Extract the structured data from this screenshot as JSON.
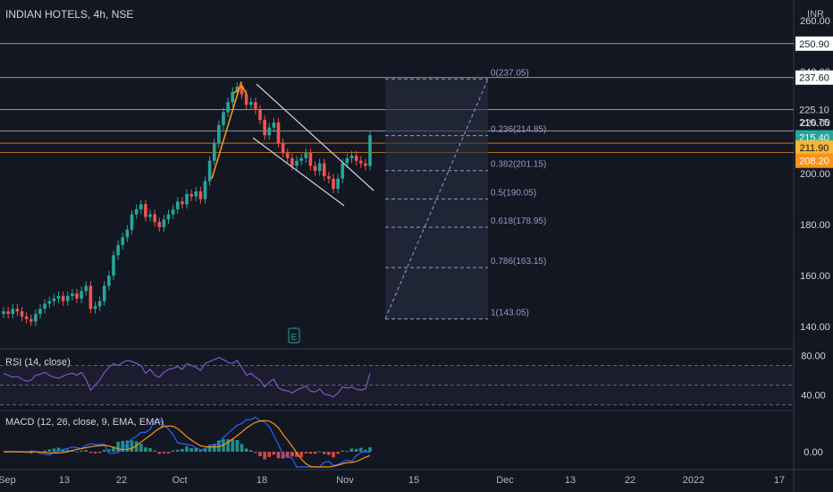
{
  "header": {
    "title": "INDIAN HOTELS, 4h, NSE",
    "currency": "INR"
  },
  "colors": {
    "bg": "#131722",
    "up": "#26a69a",
    "down": "#ef5350",
    "grid": "#2a2e39",
    "fib": "#9598c8",
    "orange": "#f7931a",
    "white": "#d1d4dc",
    "rsi": "#7e57c2",
    "macd": "#2962ff"
  },
  "chart_data": [
    {
      "type": "candlestick",
      "title": "INDIAN HOTELS, 4h, NSE",
      "ylabel": "INR",
      "ylim": [
        132,
        268
      ],
      "yticks": [
        140,
        160,
        180,
        200,
        220,
        240,
        260
      ],
      "ytick_labels": [
        "140.00",
        "160.00",
        "180.00",
        "200.00",
        "220.00",
        "240.00",
        "260.00"
      ],
      "xtick_labels": [
        "Sep",
        "13",
        "22",
        "Oct",
        "18",
        "Nov",
        "15",
        "Dec",
        "13",
        "22",
        "2022",
        "17"
      ],
      "close_series": [
        146,
        145,
        147,
        146,
        144,
        143,
        142,
        145,
        147,
        149,
        150,
        151,
        152,
        150,
        152,
        153,
        151,
        154,
        156,
        147,
        148,
        150,
        156,
        160,
        168,
        172,
        175,
        178,
        184,
        186,
        188,
        183,
        184,
        181,
        179,
        182,
        184,
        186,
        189,
        188,
        192,
        191,
        193,
        190,
        197,
        205,
        212,
        219,
        224,
        228,
        232,
        234,
        231,
        227,
        228,
        225,
        221,
        215,
        218,
        220,
        212,
        208,
        206,
        203,
        205,
        206,
        208,
        203,
        201,
        204,
        199,
        198,
        194,
        198,
        204,
        206,
        207,
        205,
        204,
        203,
        215
      ],
      "horizontal_levels": [
        250.9,
        237.6,
        225.1,
        216.75,
        211.9,
        208.2
      ],
      "price_labels": [
        "250.90",
        "237.60",
        "225.10",
        "216.75",
        "215.40",
        "211.90",
        "208.20"
      ],
      "fibonacci": [
        {
          "label": "0(237.05)",
          "value": 237.05
        },
        {
          "label": "0.236(214.85)",
          "value": 214.85
        },
        {
          "label": "0.382(201.15)",
          "value": 201.15
        },
        {
          "label": "0.5(190.05)",
          "value": 190.05
        },
        {
          "label": "0.618(178.95)",
          "value": 178.95
        },
        {
          "label": "0.786(163.15)",
          "value": 163.15
        },
        {
          "label": "1(143.05)",
          "value": 143.05
        }
      ],
      "last_price": 215.4
    },
    {
      "type": "line",
      "title": "RSI (14, close)",
      "ylim": [
        25,
        85
      ],
      "yticks": [
        40,
        80
      ],
      "ytick_labels": [
        "40.00",
        "80.00"
      ],
      "bands": [
        70,
        50,
        30
      ],
      "values": [
        62,
        60,
        58,
        59,
        56,
        54,
        55,
        60,
        61,
        63,
        60,
        58,
        57,
        59,
        61,
        62,
        60,
        63,
        56,
        45,
        50,
        55,
        63,
        68,
        72,
        70,
        73,
        75,
        74,
        72,
        70,
        62,
        66,
        60,
        58,
        63,
        66,
        67,
        69,
        66,
        72,
        70,
        68,
        65,
        72,
        74,
        76,
        78,
        76,
        73,
        72,
        75,
        68,
        60,
        62,
        58,
        55,
        48,
        53,
        56,
        47,
        45,
        44,
        42,
        45,
        47,
        49,
        44,
        43,
        46,
        41,
        40,
        38,
        42,
        48,
        47,
        48,
        46,
        45,
        46,
        62
      ]
    },
    {
      "type": "bar",
      "title": "MACD (12, 26, close, 9, EMA, EMA)",
      "ylim": [
        -5,
        5
      ],
      "yticks": [
        0
      ],
      "ytick_labels": [
        "0.00"
      ]
    }
  ]
}
